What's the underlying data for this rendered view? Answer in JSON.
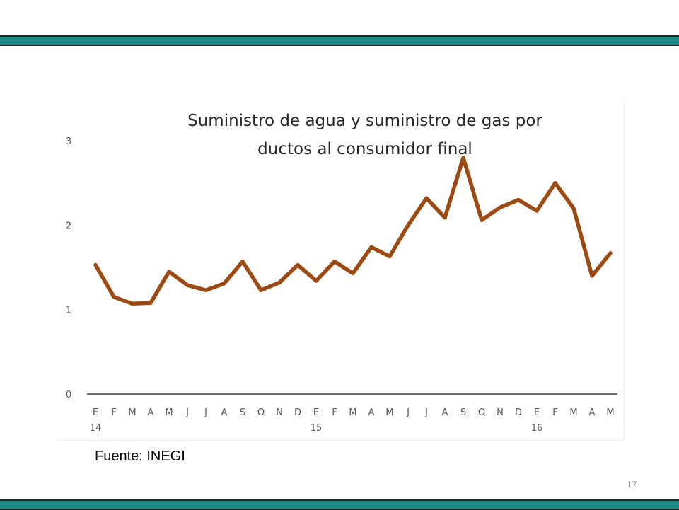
{
  "slide": {
    "source": "Fuente: INEGI",
    "page_number": "17",
    "band_color": "#1a8a84"
  },
  "chart_data": {
    "type": "line",
    "title_lines": [
      "Suministro de agua y suministro de gas por",
      "ductos al consumidor final"
    ],
    "categories": [
      "E",
      "F",
      "M",
      "A",
      "M",
      "J",
      "J",
      "A",
      "S",
      "O",
      "N",
      "D",
      "E",
      "F",
      "M",
      "A",
      "M",
      "J",
      "J",
      "A",
      "S",
      "O",
      "N",
      "D",
      "E",
      "F",
      "M",
      "A",
      "M"
    ],
    "year_labels": [
      {
        "index": 0,
        "text": "14"
      },
      {
        "index": 12,
        "text": "15"
      },
      {
        "index": 24,
        "text": "16"
      }
    ],
    "series": [
      {
        "color": "#9c4a11",
        "values": [
          1.53,
          1.15,
          1.07,
          1.08,
          1.45,
          1.29,
          1.23,
          1.31,
          1.57,
          1.23,
          1.32,
          1.53,
          1.34,
          1.57,
          1.43,
          1.74,
          1.63,
          2.0,
          2.32,
          2.09,
          2.8,
          2.06,
          2.21,
          2.3,
          2.17,
          2.5,
          2.2,
          1.4,
          1.67
        ]
      }
    ],
    "yticks": [
      0,
      1,
      2,
      3
    ],
    "ylim": [
      0,
      3.1
    ],
    "grid": false,
    "legend": "none"
  }
}
